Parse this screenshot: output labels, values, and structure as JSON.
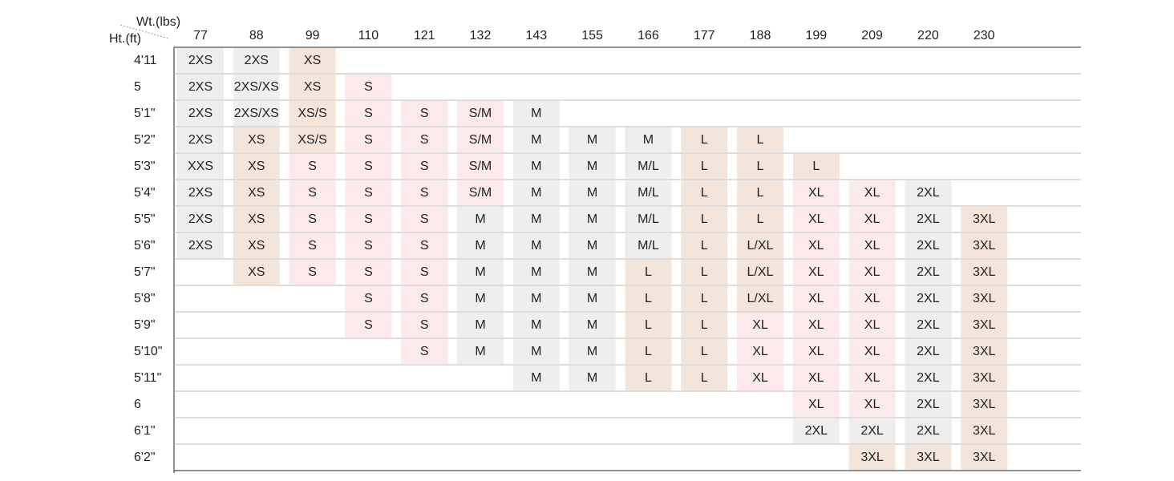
{
  "header": {
    "weight_label": "Wt.(lbs)",
    "height_label": "Ht.(ft)",
    "weights": [
      "77",
      "88",
      "99",
      "110",
      "121",
      "132",
      "143",
      "155",
      "166",
      "177",
      "188",
      "199",
      "209",
      "220",
      "230"
    ]
  },
  "size_colors": {
    "2XS": "#efeeed",
    "XXS": "#efeeed",
    "2XS/XS": "#efeeed",
    "XS": "#f3e5da",
    "XS/S": "#f3e5da",
    "S": "#fbe9ec",
    "S/M": "#fbe9ec",
    "M": "#efeeed",
    "M/L": "#efeeed",
    "L": "#f3e5da",
    "L/XL": "#f3e5da",
    "XL": "#fbe9ec",
    "2XL": "#efeeed",
    "3XL": "#f3e5da"
  },
  "table": {
    "rows": [
      {
        "height": "4'11",
        "cells": [
          "2XS",
          "2XS",
          "XS",
          null,
          null,
          null,
          null,
          null,
          null,
          null,
          null,
          null,
          null,
          null,
          null
        ]
      },
      {
        "height": "5",
        "cells": [
          "2XS",
          "2XS/XS",
          "XS",
          "S",
          null,
          null,
          null,
          null,
          null,
          null,
          null,
          null,
          null,
          null,
          null
        ]
      },
      {
        "height": "5'1\"",
        "cells": [
          "2XS",
          "2XS/XS",
          "XS/S",
          "S",
          "S",
          "S/M",
          "M",
          null,
          null,
          null,
          null,
          null,
          null,
          null,
          null
        ]
      },
      {
        "height": "5'2\"",
        "cells": [
          "2XS",
          "XS",
          "XS/S",
          "S",
          "S",
          "S/M",
          "M",
          "M",
          "M",
          "L",
          "L",
          null,
          null,
          null,
          null
        ]
      },
      {
        "height": "5'3\"",
        "cells": [
          "XXS",
          "XS",
          "S",
          "S",
          "S",
          "S/M",
          "M",
          "M",
          "M/L",
          "L",
          "L",
          "L",
          null,
          null,
          null
        ]
      },
      {
        "height": "5'4\"",
        "cells": [
          "2XS",
          "XS",
          "S",
          "S",
          "S",
          "S/M",
          "M",
          "M",
          "M/L",
          "L",
          "L",
          "XL",
          "XL",
          "2XL",
          null
        ]
      },
      {
        "height": "5'5\"",
        "cells": [
          "2XS",
          "XS",
          "S",
          "S",
          "S",
          "M",
          "M",
          "M",
          "M/L",
          "L",
          "L",
          "XL",
          "XL",
          "2XL",
          "3XL"
        ]
      },
      {
        "height": "5'6\"",
        "cells": [
          "2XS",
          "XS",
          "S",
          "S",
          "S",
          "M",
          "M",
          "M",
          "M/L",
          "L",
          "L/XL",
          "XL",
          "XL",
          "2XL",
          "3XL"
        ]
      },
      {
        "height": "5'7\"",
        "cells": [
          null,
          "XS",
          "S",
          "S",
          "S",
          "M",
          "M",
          "M",
          "L",
          "L",
          "L/XL",
          "XL",
          "XL",
          "2XL",
          "3XL"
        ]
      },
      {
        "height": "5'8\"",
        "cells": [
          null,
          null,
          null,
          "S",
          "S",
          "M",
          "M",
          "M",
          "L",
          "L",
          "L/XL",
          "XL",
          "XL",
          "2XL",
          "3XL"
        ]
      },
      {
        "height": "5'9\"",
        "cells": [
          null,
          null,
          null,
          "S",
          "S",
          "M",
          "M",
          "M",
          "L",
          "L",
          "XL",
          "XL",
          "XL",
          "2XL",
          "3XL"
        ]
      },
      {
        "height": "5'10\"",
        "cells": [
          null,
          null,
          null,
          null,
          "S",
          "M",
          "M",
          "M",
          "L",
          "L",
          "XL",
          "XL",
          "XL",
          "2XL",
          "3XL"
        ]
      },
      {
        "height": "5'11\"",
        "cells": [
          null,
          null,
          null,
          null,
          null,
          null,
          "M",
          "M",
          "L",
          "L",
          "XL",
          "XL",
          "XL",
          "2XL",
          "3XL"
        ]
      },
      {
        "height": "6",
        "cells": [
          null,
          null,
          null,
          null,
          null,
          null,
          null,
          null,
          null,
          null,
          null,
          "XL",
          "XL",
          "2XL",
          "3XL"
        ]
      },
      {
        "height": "6'1\"",
        "cells": [
          null,
          null,
          null,
          null,
          null,
          null,
          null,
          null,
          null,
          null,
          null,
          "2XL",
          "2XL",
          "2XL",
          "3XL"
        ]
      },
      {
        "height": "6'2\"",
        "cells": [
          null,
          null,
          null,
          null,
          null,
          null,
          null,
          null,
          null,
          null,
          null,
          null,
          "3XL",
          "3XL",
          "3XL"
        ]
      }
    ]
  }
}
